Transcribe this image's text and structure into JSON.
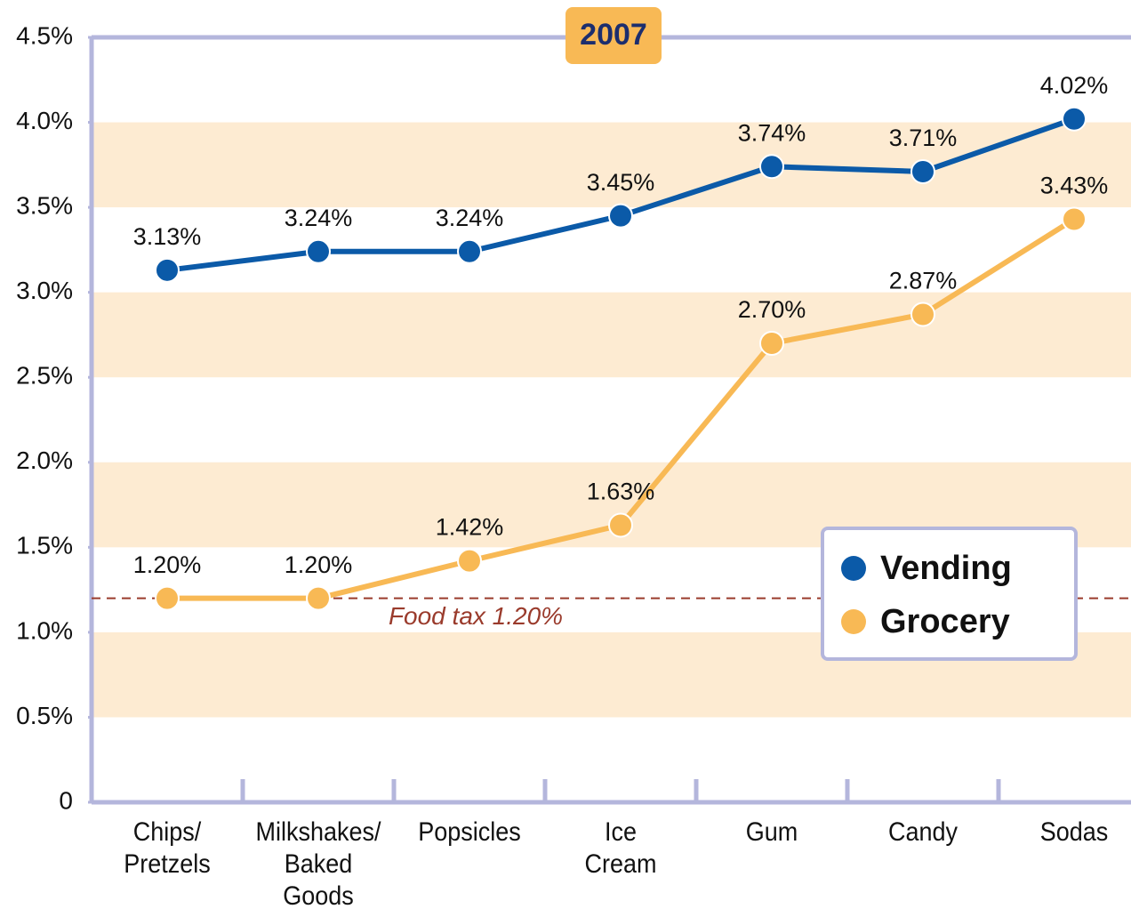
{
  "chart_data": {
    "type": "line",
    "title": "2007",
    "categories": [
      "Chips/\nPretzels",
      "Milkshakes/\nBaked\nGoods",
      "Popsicles",
      "Ice\nCream",
      "Gum",
      "Candy",
      "Sodas"
    ],
    "series": [
      {
        "name": "Vending",
        "color": "#0b5aa8",
        "values": [
          3.13,
          3.24,
          3.24,
          3.45,
          3.74,
          3.71,
          4.02
        ],
        "value_labels": [
          "3.13%",
          "3.24%",
          "3.24%",
          "3.45%",
          "3.74%",
          "3.71%",
          "4.02%"
        ]
      },
      {
        "name": "Grocery",
        "color": "#f8b955",
        "values": [
          1.2,
          1.2,
          1.42,
          1.63,
          2.7,
          2.87,
          3.43
        ],
        "value_labels": [
          "1.20%",
          "1.20%",
          "1.42%",
          "1.63%",
          "2.70%",
          "2.87%",
          "3.43%"
        ]
      }
    ],
    "ylim": [
      0,
      4.5
    ],
    "yticks": [
      0,
      {
        "value": 0.5,
        "label": "0.5%"
      },
      {
        "value": 1.0,
        "label": "1.0%"
      },
      {
        "value": 1.5,
        "label": "1.5%"
      },
      {
        "value": 2.0,
        "label": "2.0%"
      },
      {
        "value": 2.5,
        "label": "2.5%"
      },
      {
        "value": 3.0,
        "label": "3.0%"
      },
      {
        "value": 3.5,
        "label": "3.5%"
      },
      {
        "value": 4.0,
        "label": "4.0%"
      },
      {
        "value": 4.5,
        "label": "4.5%"
      }
    ],
    "reference_line": {
      "value": 1.2,
      "label": "Food tax 1.20%",
      "color": "#9a3b2c"
    },
    "legend": "lower right"
  }
}
